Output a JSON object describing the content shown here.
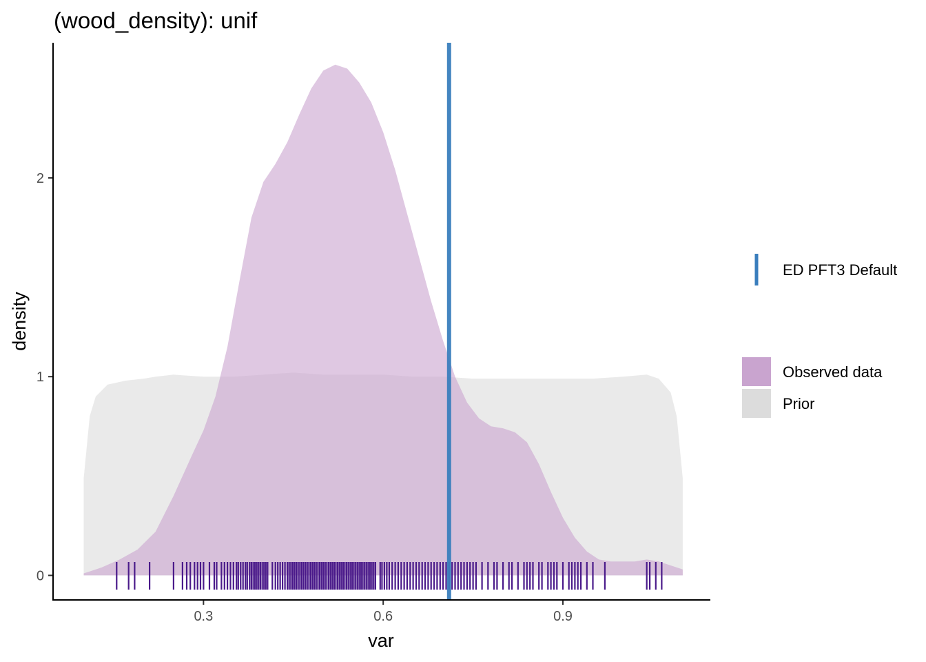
{
  "chart_data": {
    "type": "area",
    "title": "(wood_density): unif",
    "xlabel": "var",
    "ylabel": "density",
    "xlim": [
      0.05,
      1.145
    ],
    "ylim": [
      -0.12,
      2.68
    ],
    "x_ticks": [
      {
        "value": 0.3,
        "label": "0.3"
      },
      {
        "value": 0.6,
        "label": "0.6"
      },
      {
        "value": 0.9,
        "label": "0.9"
      }
    ],
    "y_ticks": [
      {
        "value": 0,
        "label": "0"
      },
      {
        "value": 1,
        "label": "1"
      },
      {
        "value": 2,
        "label": "2"
      }
    ],
    "grid": false,
    "series": [
      {
        "name": "Prior",
        "kind": "density",
        "color": "#dcdcdc",
        "opacity": 0.6,
        "points": [
          [
            0.1,
            0.49
          ],
          [
            0.11,
            0.8
          ],
          [
            0.12,
            0.9
          ],
          [
            0.14,
            0.96
          ],
          [
            0.17,
            0.98
          ],
          [
            0.2,
            0.99
          ],
          [
            0.22,
            1.0
          ],
          [
            0.25,
            1.01
          ],
          [
            0.3,
            1.0
          ],
          [
            0.35,
            1.0
          ],
          [
            0.4,
            1.01
          ],
          [
            0.45,
            1.02
          ],
          [
            0.5,
            1.01
          ],
          [
            0.55,
            1.01
          ],
          [
            0.6,
            1.01
          ],
          [
            0.65,
            1.0
          ],
          [
            0.7,
            1.0
          ],
          [
            0.75,
            0.99
          ],
          [
            0.8,
            0.99
          ],
          [
            0.85,
            0.99
          ],
          [
            0.9,
            0.99
          ],
          [
            0.95,
            0.99
          ],
          [
            1.0,
            1.0
          ],
          [
            1.04,
            1.01
          ],
          [
            1.06,
            0.99
          ],
          [
            1.08,
            0.92
          ],
          [
            1.09,
            0.8
          ],
          [
            1.1,
            0.49
          ]
        ]
      },
      {
        "name": "Observed data",
        "kind": "density",
        "color": "#c9a4cf",
        "opacity": 0.6,
        "points": [
          [
            0.1,
            0.01
          ],
          [
            0.13,
            0.04
          ],
          [
            0.16,
            0.08
          ],
          [
            0.19,
            0.13
          ],
          [
            0.22,
            0.22
          ],
          [
            0.25,
            0.4
          ],
          [
            0.28,
            0.6
          ],
          [
            0.3,
            0.73
          ],
          [
            0.32,
            0.9
          ],
          [
            0.34,
            1.15
          ],
          [
            0.36,
            1.48
          ],
          [
            0.38,
            1.8
          ],
          [
            0.4,
            1.98
          ],
          [
            0.42,
            2.07
          ],
          [
            0.44,
            2.18
          ],
          [
            0.46,
            2.32
          ],
          [
            0.48,
            2.45
          ],
          [
            0.5,
            2.54
          ],
          [
            0.52,
            2.57
          ],
          [
            0.54,
            2.55
          ],
          [
            0.56,
            2.48
          ],
          [
            0.58,
            2.38
          ],
          [
            0.6,
            2.23
          ],
          [
            0.62,
            2.04
          ],
          [
            0.64,
            1.82
          ],
          [
            0.66,
            1.6
          ],
          [
            0.68,
            1.38
          ],
          [
            0.7,
            1.18
          ],
          [
            0.72,
            1.0
          ],
          [
            0.74,
            0.87
          ],
          [
            0.76,
            0.79
          ],
          [
            0.78,
            0.75
          ],
          [
            0.8,
            0.74
          ],
          [
            0.82,
            0.72
          ],
          [
            0.84,
            0.67
          ],
          [
            0.86,
            0.56
          ],
          [
            0.88,
            0.42
          ],
          [
            0.9,
            0.29
          ],
          [
            0.92,
            0.19
          ],
          [
            0.94,
            0.12
          ],
          [
            0.96,
            0.08
          ],
          [
            0.98,
            0.07
          ],
          [
            1.0,
            0.07
          ],
          [
            1.02,
            0.07
          ],
          [
            1.04,
            0.08
          ],
          [
            1.06,
            0.07
          ],
          [
            1.08,
            0.05
          ],
          [
            1.1,
            0.03
          ]
        ]
      },
      {
        "name": "ED PFT3 Default",
        "kind": "vline",
        "color": "#3a7ebd",
        "x": 0.71
      }
    ],
    "rug": {
      "color": "#4a1a8a",
      "values": [
        0.155,
        0.175,
        0.185,
        0.21,
        0.25,
        0.265,
        0.272,
        0.278,
        0.285,
        0.29,
        0.295,
        0.3,
        0.31,
        0.318,
        0.322,
        0.33,
        0.335,
        0.34,
        0.345,
        0.35,
        0.355,
        0.358,
        0.362,
        0.366,
        0.37,
        0.373,
        0.377,
        0.38,
        0.383,
        0.386,
        0.389,
        0.392,
        0.395,
        0.398,
        0.401,
        0.404,
        0.407,
        0.415,
        0.42,
        0.424,
        0.428,
        0.432,
        0.436,
        0.44,
        0.443,
        0.446,
        0.449,
        0.452,
        0.455,
        0.458,
        0.461,
        0.464,
        0.467,
        0.47,
        0.473,
        0.476,
        0.479,
        0.482,
        0.485,
        0.488,
        0.491,
        0.494,
        0.497,
        0.5,
        0.503,
        0.506,
        0.509,
        0.512,
        0.515,
        0.518,
        0.521,
        0.524,
        0.527,
        0.53,
        0.533,
        0.536,
        0.539,
        0.542,
        0.545,
        0.548,
        0.551,
        0.554,
        0.557,
        0.56,
        0.563,
        0.566,
        0.569,
        0.572,
        0.575,
        0.578,
        0.581,
        0.584,
        0.587,
        0.595,
        0.598,
        0.602,
        0.606,
        0.61,
        0.615,
        0.62,
        0.625,
        0.63,
        0.635,
        0.64,
        0.645,
        0.65,
        0.655,
        0.66,
        0.665,
        0.67,
        0.675,
        0.68,
        0.685,
        0.69,
        0.695,
        0.7,
        0.705,
        0.71,
        0.715,
        0.72,
        0.725,
        0.73,
        0.735,
        0.74,
        0.745,
        0.75,
        0.755,
        0.765,
        0.775,
        0.785,
        0.79,
        0.8,
        0.81,
        0.815,
        0.825,
        0.835,
        0.84,
        0.845,
        0.85,
        0.86,
        0.865,
        0.875,
        0.88,
        0.885,
        0.89,
        0.9,
        0.91,
        0.915,
        0.92,
        0.925,
        0.93,
        0.94,
        0.95,
        0.97,
        1.04,
        1.045,
        1.055,
        1.065
      ]
    },
    "legend": {
      "position": "right",
      "groups": [
        {
          "items": [
            {
              "label": "ED PFT3 Default",
              "kind": "line",
              "color": "#3a7ebd"
            }
          ]
        },
        {
          "items": [
            {
              "label": "Observed data",
              "kind": "fill",
              "color": "#c9a4cf"
            },
            {
              "label": "Prior",
              "kind": "fill",
              "color": "#dcdcdc"
            }
          ]
        }
      ]
    }
  }
}
